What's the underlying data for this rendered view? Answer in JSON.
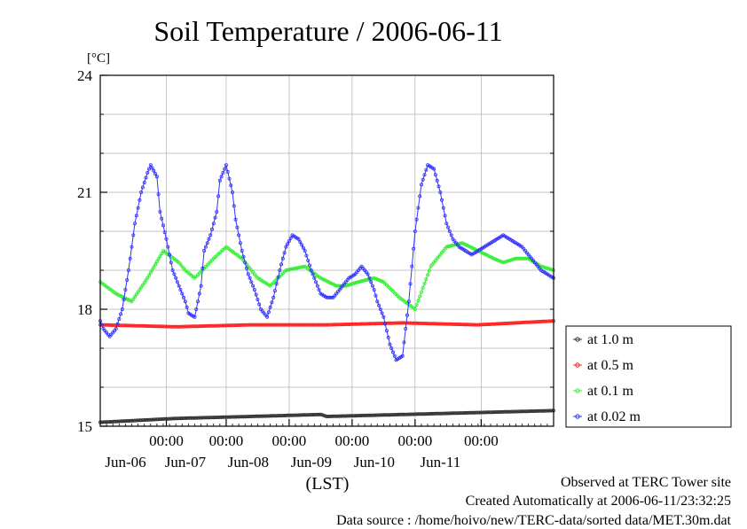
{
  "chart_data": {
    "type": "line",
    "title": "Soil Temperature / 2006-06-11",
    "ylabel": "[°C]",
    "xlabel": "(LST)",
    "ylim": [
      15,
      24
    ],
    "yticks": [
      15,
      18,
      21,
      24
    ],
    "x_hours_range": [
      0,
      144
    ],
    "x_ticks": [
      {
        "hour": 21,
        "time": "00:00",
        "date": "Jun-06"
      },
      {
        "hour": 40,
        "time": "00:00",
        "date": "Jun-07"
      },
      {
        "hour": 60,
        "time": "00:00",
        "date": "Jun-08"
      },
      {
        "hour": 80,
        "time": "00:00",
        "date": "Jun-09"
      },
      {
        "hour": 100,
        "time": "00:00",
        "date": "Jun-10"
      },
      {
        "hour": 121,
        "time": "00:00",
        "date": "Jun-11"
      }
    ],
    "grid": true,
    "legend_position": "right",
    "series": [
      {
        "name": "at 1.0 m",
        "color": "#333333",
        "x": [
          0,
          24,
          48,
          70,
          72,
          96,
          120,
          144
        ],
        "y": [
          15.1,
          15.2,
          15.25,
          15.3,
          15.25,
          15.3,
          15.35,
          15.4
        ]
      },
      {
        "name": "at 0.5 m",
        "color": "#ff2020",
        "x": [
          0,
          24,
          48,
          72,
          96,
          120,
          144
        ],
        "y": [
          17.6,
          17.55,
          17.6,
          17.6,
          17.65,
          17.6,
          17.7
        ]
      },
      {
        "name": "at 0.1 m",
        "color": "#33ee33",
        "x": [
          0,
          5,
          10,
          15,
          20,
          25,
          27,
          30,
          36,
          40,
          45,
          50,
          54,
          59,
          65,
          70,
          75,
          78,
          82,
          87,
          90,
          95,
          100,
          105,
          110,
          115,
          120,
          125,
          128,
          132,
          136,
          140,
          144
        ],
        "y": [
          18.7,
          18.4,
          18.2,
          18.8,
          19.5,
          19.2,
          19.0,
          18.8,
          19.3,
          19.6,
          19.3,
          18.8,
          18.6,
          19.0,
          19.1,
          18.8,
          18.6,
          18.6,
          18.7,
          18.8,
          18.7,
          18.3,
          18.0,
          19.1,
          19.6,
          19.7,
          19.5,
          19.3,
          19.2,
          19.3,
          19.3,
          19.1,
          19.0
        ]
      },
      {
        "name": "at 0.02 m",
        "color": "#3333ff",
        "x": [
          0,
          1,
          3,
          5,
          7,
          9,
          11,
          13,
          15,
          16,
          18,
          19,
          21,
          23,
          25,
          27,
          28,
          30,
          32,
          33,
          35,
          37,
          38,
          40,
          42,
          43,
          45,
          47,
          49,
          51,
          53,
          55,
          57,
          59,
          61,
          63,
          65,
          67,
          69,
          70,
          72,
          74,
          76,
          78,
          79,
          81,
          83,
          85,
          87,
          88,
          90,
          92,
          94,
          96,
          98,
          100,
          102,
          104,
          106,
          108,
          110,
          112,
          114,
          116,
          118,
          120,
          122,
          124,
          126,
          128,
          130,
          132,
          134,
          136,
          138,
          140,
          142,
          144
        ],
        "y": [
          17.7,
          17.5,
          17.3,
          17.5,
          18.0,
          19.0,
          20.2,
          21.0,
          21.5,
          21.7,
          21.4,
          20.5,
          19.8,
          19.0,
          18.6,
          18.2,
          17.9,
          17.8,
          18.6,
          19.5,
          19.9,
          20.5,
          21.3,
          21.7,
          21.0,
          20.3,
          19.5,
          18.9,
          18.5,
          18.0,
          17.8,
          18.3,
          19.0,
          19.6,
          19.9,
          19.8,
          19.5,
          19.0,
          18.6,
          18.4,
          18.3,
          18.3,
          18.5,
          18.7,
          18.8,
          18.9,
          19.1,
          18.9,
          18.5,
          18.2,
          17.8,
          17.1,
          16.7,
          16.8,
          18.2,
          20.0,
          21.2,
          21.7,
          21.6,
          21.0,
          20.2,
          19.8,
          19.6,
          19.5,
          19.4,
          19.5,
          19.6,
          19.7,
          19.8,
          19.9,
          19.8,
          19.7,
          19.6,
          19.4,
          19.2,
          19.0,
          18.9,
          18.8
        ]
      }
    ]
  },
  "footer": {
    "line1": "Observed at TERC Tower site",
    "line2": "Created Automatically at 2006-06-11/23:32:25",
    "line3": "Data source : /home/hoivo/new/TERC-data/sorted  data/MET.30m.dat"
  }
}
